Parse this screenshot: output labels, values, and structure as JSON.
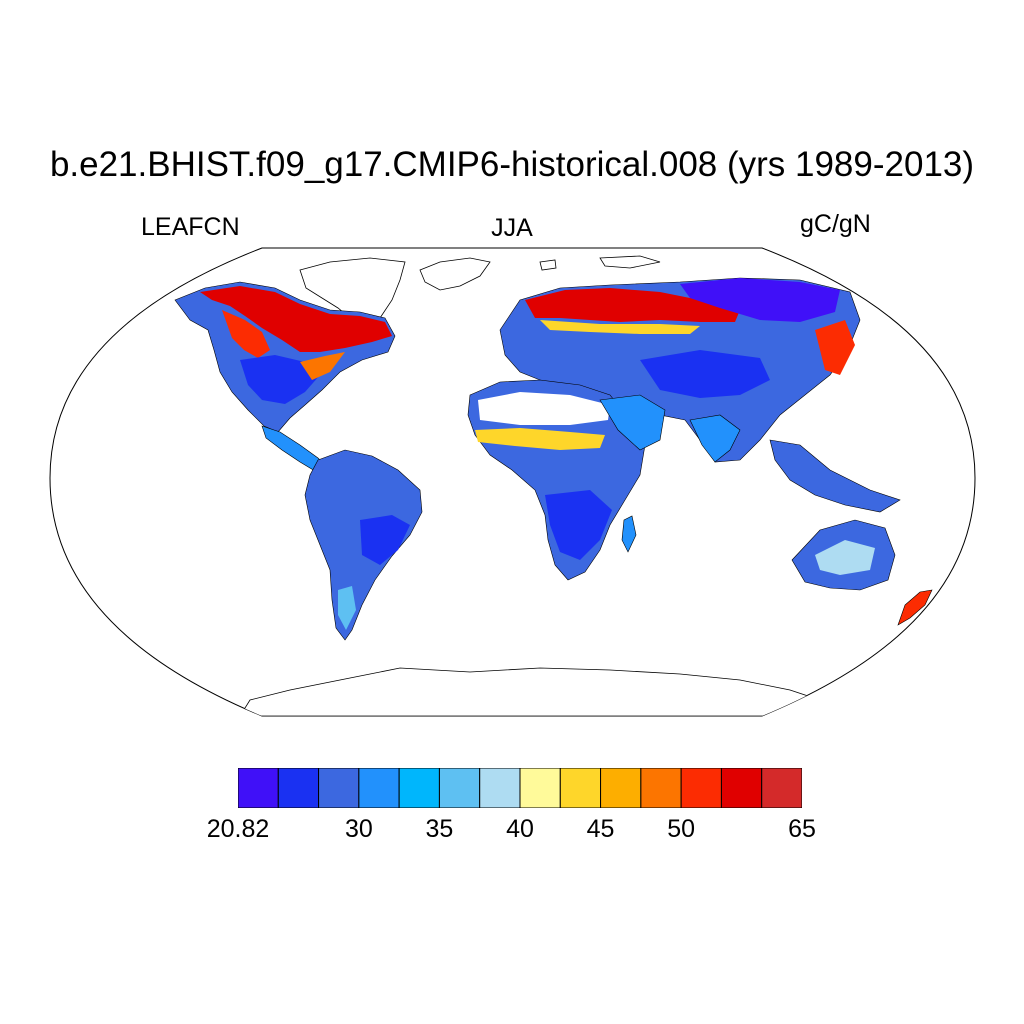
{
  "header": {
    "title": "b.e21.BHIST.f09_g17.CMIP6-historical.008 (yrs 1989-2013)",
    "variable": "LEAFCN",
    "season": "JJA",
    "units": "gC/gN"
  },
  "map": {
    "projection": "robinson",
    "field": "LEAFCN"
  },
  "colorbar": {
    "colors": [
      "#4010f8",
      "#1a31f2",
      "#3c68e0",
      "#2291fc",
      "#00b6fc",
      "#5ec0f2",
      "#aedcf2",
      "#fffa9a",
      "#fed62a",
      "#fdae00",
      "#fc7500",
      "#fc2c02",
      "#e00000",
      "#d42a2a"
    ],
    "labels": [
      {
        "text": "20.82",
        "index": 0
      },
      {
        "text": "30",
        "index": 3
      },
      {
        "text": "35",
        "index": 5
      },
      {
        "text": "40",
        "index": 7
      },
      {
        "text": "45",
        "index": 9
      },
      {
        "text": "50",
        "index": 11
      },
      {
        "text": "65",
        "index": 14
      }
    ]
  }
}
